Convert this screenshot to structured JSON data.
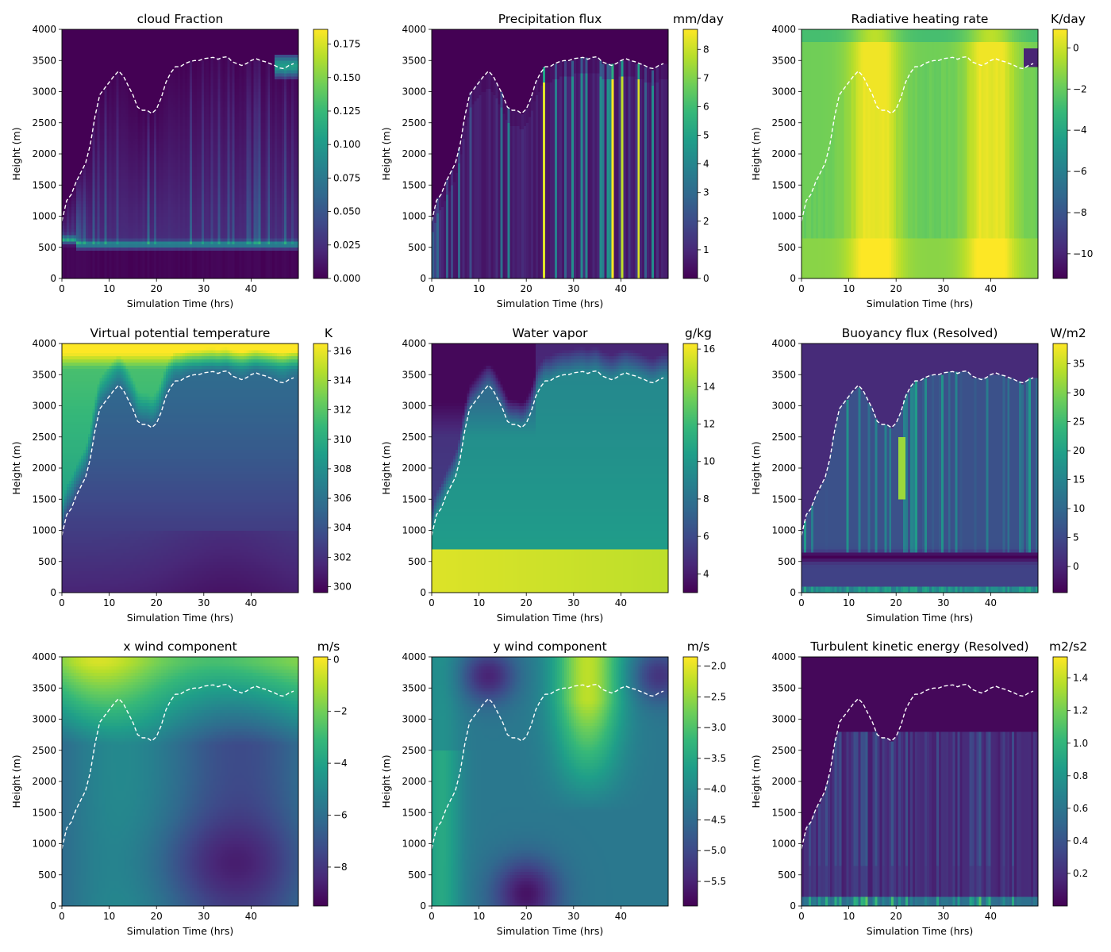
{
  "colormap": "viridis",
  "colormap_stops": [
    "#440154",
    "#482878",
    "#3e4989",
    "#31688e",
    "#26828e",
    "#1f9e89",
    "#35b779",
    "#6ece58",
    "#b5de2b",
    "#fde725"
  ],
  "boundary_layer_line_color": "#ffffff",
  "chart_data": [
    {
      "type": "heatmap",
      "title": "cloud Fraction",
      "units": "",
      "xlabel": "Simulation Time (hrs)",
      "ylabel": "Height (m)",
      "xlim": [
        0,
        50
      ],
      "ylim": [
        0,
        4000
      ],
      "xticks": [
        0,
        10,
        20,
        30,
        40
      ],
      "yticks": [
        0,
        500,
        1000,
        1500,
        2000,
        2500,
        3000,
        3500,
        4000
      ],
      "colorbar_range": [
        0,
        0.186
      ],
      "colorbar_ticks": [
        "0.000",
        "0.025",
        "0.050",
        "0.075",
        "0.100",
        "0.125",
        "0.150",
        "0.175"
      ],
      "colorbar_tick_values": [
        0,
        0.025,
        0.05,
        0.075,
        0.1,
        0.125,
        0.15,
        0.175
      ],
      "pattern": "cloud"
    },
    {
      "type": "heatmap",
      "title": "Precipitation flux",
      "units": "mm/day",
      "xlabel": "Simulation Time (hrs)",
      "ylabel": "Height (m)",
      "xlim": [
        0,
        50
      ],
      "ylim": [
        0,
        4000
      ],
      "xticks": [
        0,
        10,
        20,
        30,
        40
      ],
      "yticks": [
        0,
        500,
        1000,
        1500,
        2000,
        2500,
        3000,
        3500,
        4000
      ],
      "colorbar_range": [
        0,
        8.7
      ],
      "colorbar_ticks": [
        "0",
        "1",
        "2",
        "3",
        "4",
        "5",
        "6",
        "7",
        "8"
      ],
      "colorbar_tick_values": [
        0,
        1,
        2,
        3,
        4,
        5,
        6,
        7,
        8
      ],
      "pattern": "precip"
    },
    {
      "type": "heatmap",
      "title": "Radiative heating rate",
      "units": "K/day",
      "xlabel": "Simulation Time (hrs)",
      "ylabel": "Height (m)",
      "xlim": [
        0,
        50
      ],
      "ylim": [
        0,
        4000
      ],
      "xticks": [
        0,
        10,
        20,
        30,
        40
      ],
      "yticks": [
        0,
        500,
        1000,
        1500,
        2000,
        2500,
        3000,
        3500,
        4000
      ],
      "colorbar_range": [
        -11.2,
        0.9
      ],
      "colorbar_ticks": [
        "−10",
        "−8",
        "−6",
        "−4",
        "−2",
        "0"
      ],
      "colorbar_tick_values": [
        -10,
        -8,
        -6,
        -4,
        -2,
        0
      ],
      "pattern": "radiation"
    },
    {
      "type": "heatmap",
      "title": "Virtual potential temperature",
      "units": "K",
      "xlabel": "Simulation Time (hrs)",
      "ylabel": "Height (m)",
      "xlim": [
        0,
        50
      ],
      "ylim": [
        0,
        4000
      ],
      "xticks": [
        0,
        10,
        20,
        30,
        40
      ],
      "yticks": [
        0,
        500,
        1000,
        1500,
        2000,
        2500,
        3000,
        3500,
        4000
      ],
      "colorbar_range": [
        299.6,
        316.5
      ],
      "colorbar_ticks": [
        "300",
        "302",
        "304",
        "306",
        "308",
        "310",
        "312",
        "314",
        "316"
      ],
      "colorbar_tick_values": [
        300,
        302,
        304,
        306,
        308,
        310,
        312,
        314,
        316
      ],
      "pattern": "thetav"
    },
    {
      "type": "heatmap",
      "title": "Water vapor",
      "units": "g/kg",
      "xlabel": "Simulation Time (hrs)",
      "ylabel": "Height (m)",
      "xlim": [
        0,
        50
      ],
      "ylim": [
        0,
        4000
      ],
      "xticks": [
        0,
        10,
        20,
        30,
        40
      ],
      "yticks": [
        0,
        500,
        1000,
        1500,
        2000,
        2500,
        3000,
        3500,
        4000
      ],
      "colorbar_range": [
        3,
        16.3
      ],
      "colorbar_ticks": [
        "4",
        "6",
        "8",
        "10",
        "12",
        "14",
        "16"
      ],
      "colorbar_tick_values": [
        4,
        6,
        8,
        10,
        12,
        14,
        16
      ],
      "pattern": "vapor"
    },
    {
      "type": "heatmap",
      "title": "Buoyancy flux (Resolved)",
      "units": "W/m2",
      "xlabel": "Simulation Time (hrs)",
      "ylabel": "Height (m)",
      "xlim": [
        0,
        50
      ],
      "ylim": [
        0,
        4000
      ],
      "xticks": [
        0,
        10,
        20,
        30,
        40
      ],
      "yticks": [
        0,
        500,
        1000,
        1500,
        2000,
        2500,
        3000,
        3500,
        4000
      ],
      "colorbar_range": [
        -4.5,
        38.5
      ],
      "colorbar_ticks": [
        "0",
        "5",
        "10",
        "15",
        "20",
        "25",
        "30",
        "35"
      ],
      "colorbar_tick_values": [
        0,
        5,
        10,
        15,
        20,
        25,
        30,
        35
      ],
      "pattern": "buoy"
    },
    {
      "type": "heatmap",
      "title": "x wind component",
      "units": "m/s",
      "xlabel": "Simulation Time (hrs)",
      "ylabel": "Height (m)",
      "xlim": [
        0,
        50
      ],
      "ylim": [
        0,
        4000
      ],
      "xticks": [
        0,
        10,
        20,
        30,
        40
      ],
      "yticks": [
        0,
        500,
        1000,
        1500,
        2000,
        2500,
        3000,
        3500,
        4000
      ],
      "colorbar_range": [
        -9.5,
        0.1
      ],
      "colorbar_ticks": [
        "−8",
        "−6",
        "−4",
        "−2",
        "0"
      ],
      "colorbar_tick_values": [
        -8,
        -6,
        -4,
        -2,
        0
      ],
      "pattern": "uwind"
    },
    {
      "type": "heatmap",
      "title": "y wind component",
      "units": "m/s",
      "xlabel": "Simulation Time (hrs)",
      "ylabel": "Height (m)",
      "xlim": [
        0,
        50
      ],
      "ylim": [
        0,
        4000
      ],
      "xticks": [
        0,
        10,
        20,
        30,
        40
      ],
      "yticks": [
        0,
        500,
        1000,
        1500,
        2000,
        2500,
        3000,
        3500,
        4000
      ],
      "colorbar_range": [
        -5.9,
        -1.85
      ],
      "colorbar_ticks": [
        "−5.5",
        "−5.0",
        "−4.5",
        "−4.0",
        "−3.5",
        "−3.0",
        "−2.5",
        "−2.0"
      ],
      "colorbar_tick_values": [
        -5.5,
        -5.0,
        -4.5,
        -4.0,
        -3.5,
        -3.0,
        -2.5,
        -2.0
      ],
      "pattern": "vwind"
    },
    {
      "type": "heatmap",
      "title": "Turbulent kinetic energy (Resolved)",
      "units": "m2/s2",
      "xlabel": "Simulation Time (hrs)",
      "ylabel": "Height (m)",
      "xlim": [
        0,
        50
      ],
      "ylim": [
        0,
        4000
      ],
      "xticks": [
        0,
        10,
        20,
        30,
        40
      ],
      "yticks": [
        0,
        500,
        1000,
        1500,
        2000,
        2500,
        3000,
        3500,
        4000
      ],
      "colorbar_range": [
        0,
        1.53
      ],
      "colorbar_ticks": [
        "0.2",
        "0.4",
        "0.6",
        "0.8",
        "1.0",
        "1.2",
        "1.4"
      ],
      "colorbar_tick_values": [
        0.2,
        0.4,
        0.6,
        0.8,
        1.0,
        1.2,
        1.4
      ],
      "pattern": "tke"
    }
  ],
  "boundary_layer_height": {
    "style": "dashed",
    "time_hrs": [
      0,
      1,
      2,
      3,
      4,
      5,
      6,
      7,
      8,
      9,
      10,
      11,
      12,
      13,
      14,
      15,
      16,
      17,
      18,
      19,
      20,
      21,
      22,
      23,
      24,
      25,
      26,
      27,
      28,
      29,
      30,
      31,
      32,
      33,
      34,
      35,
      36,
      37,
      38,
      39,
      40,
      41,
      42,
      43,
      44,
      45,
      46,
      47,
      48,
      49
    ],
    "height_m": [
      920,
      1250,
      1350,
      1550,
      1700,
      1850,
      2150,
      2600,
      2950,
      3050,
      3150,
      3250,
      3330,
      3250,
      3100,
      2950,
      2750,
      2700,
      2700,
      2650,
      2720,
      2900,
      3150,
      3300,
      3400,
      3400,
      3450,
      3480,
      3500,
      3500,
      3530,
      3540,
      3550,
      3520,
      3550,
      3560,
      3480,
      3450,
      3420,
      3450,
      3500,
      3530,
      3500,
      3480,
      3450,
      3420,
      3380,
      3370,
      3420,
      3450
    ]
  }
}
